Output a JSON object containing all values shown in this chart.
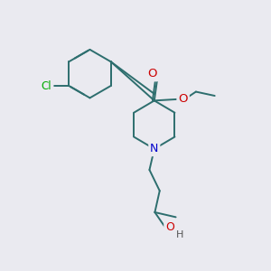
{
  "bg_color": "#eaeaf0",
  "bond_color": "#2d6e6e",
  "atom_colors": {
    "Cl": "#00aa00",
    "N": "#0000cc",
    "O": "#cc0000",
    "H": "#555555"
  }
}
